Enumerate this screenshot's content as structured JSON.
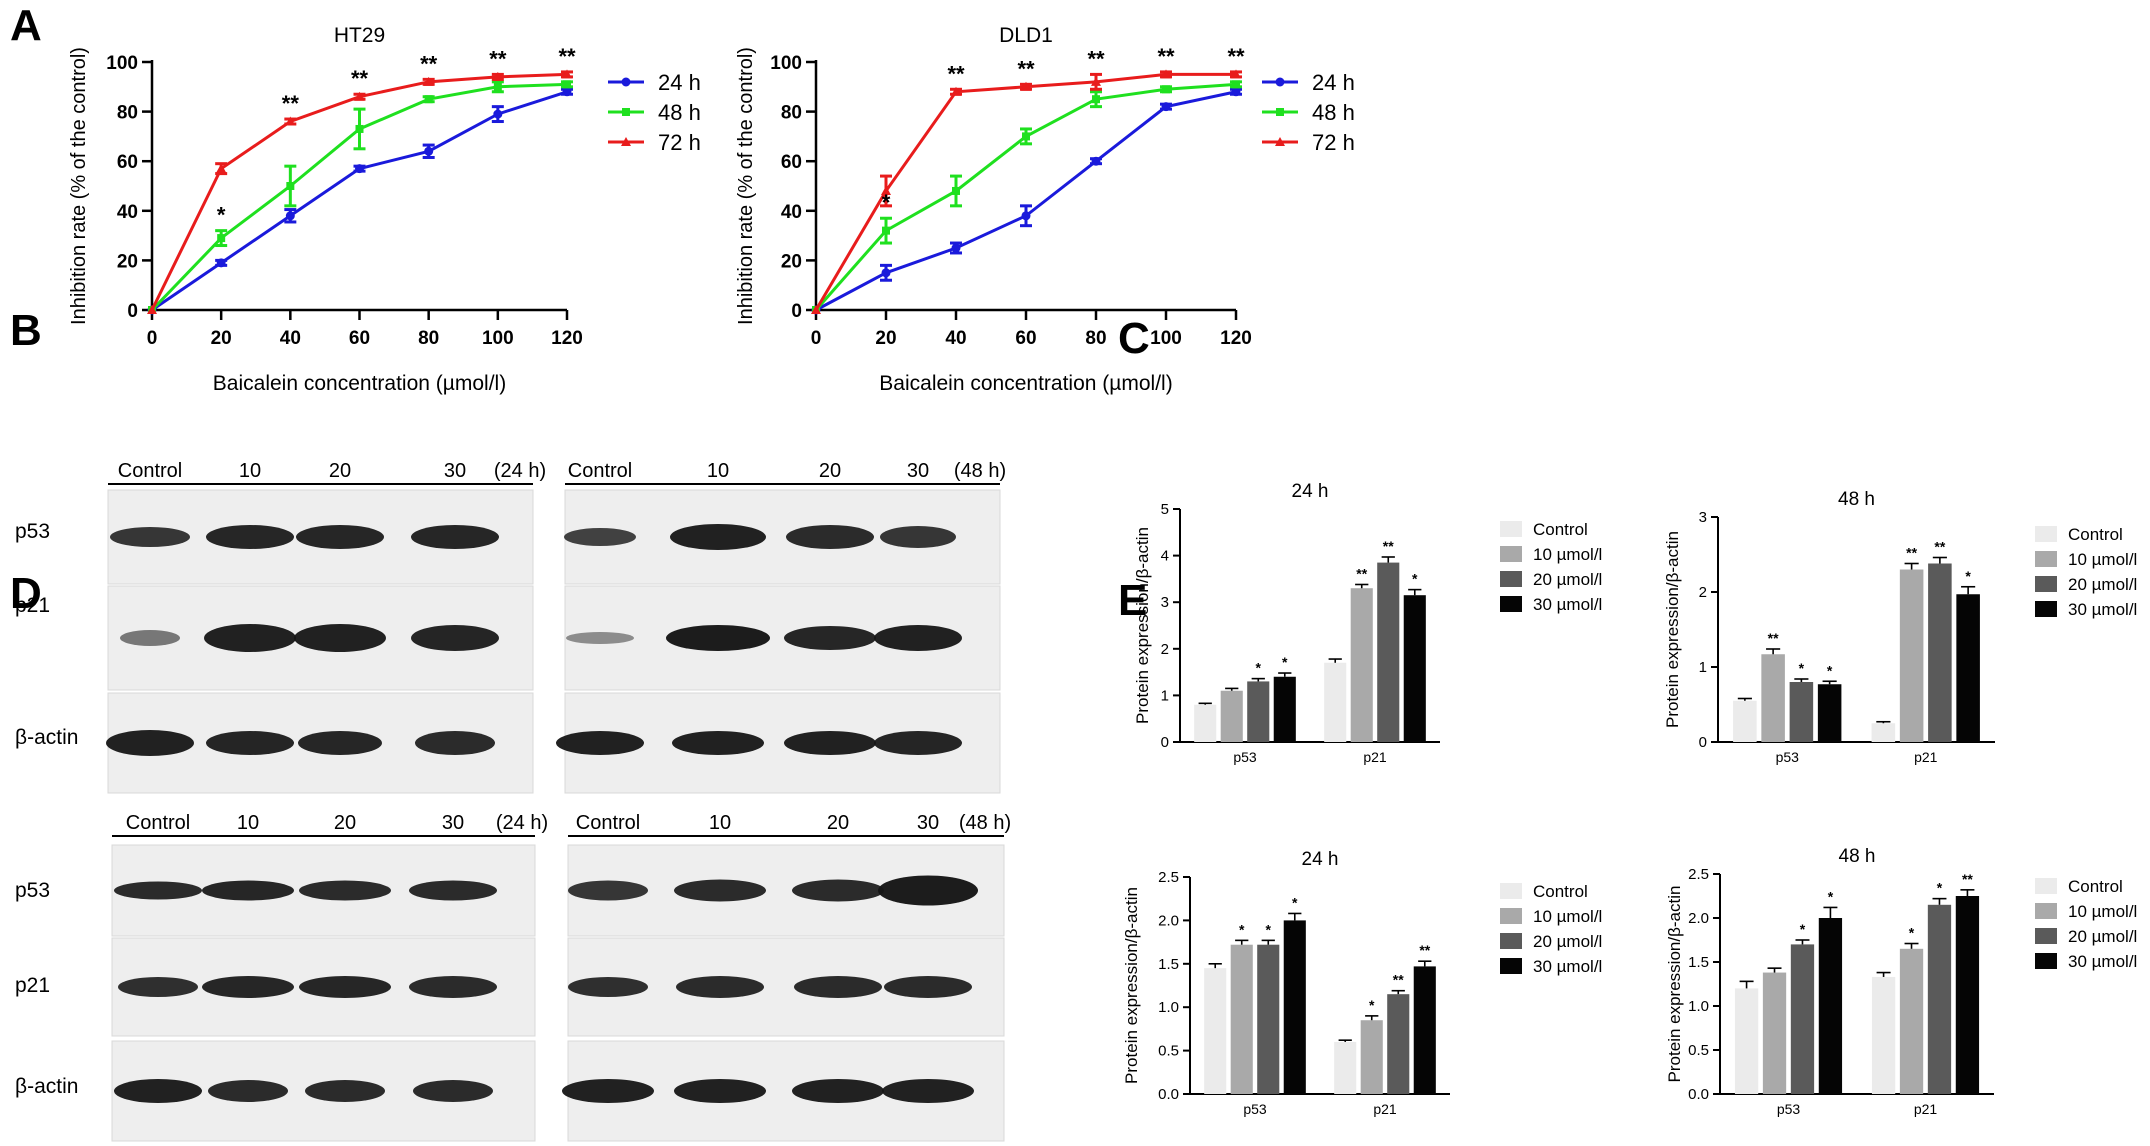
{
  "panels": [
    "A",
    "B",
    "C",
    "D",
    "E"
  ],
  "line_legend": [
    "24 h",
    "48 h",
    "72 h"
  ],
  "line_colors": {
    "24 h": "#1a1adb",
    "48 h": "#1fe01f",
    "72 h": "#e81c1c"
  },
  "bar_legend": [
    "Control",
    "10 µmol/l",
    "20 µmol/l",
    "30 µmol/l"
  ],
  "bar_colors": [
    "#ebebeb",
    "#a9a9a9",
    "#5a5a5a",
    "#050505"
  ],
  "blots": {
    "B_left": {
      "lanes": [
        "Control",
        "10",
        "20",
        "30"
      ],
      "time": "(24 h)"
    },
    "B_right": {
      "lanes": [
        "Control",
        "10",
        "20",
        "30"
      ],
      "time": "(48 h)"
    },
    "D_left": {
      "lanes": [
        "Control",
        "10",
        "20",
        "30"
      ],
      "time": "(24 h)"
    },
    "D_right": {
      "lanes": [
        "Control",
        "10",
        "20",
        "30"
      ],
      "time": "(48 h)"
    },
    "row_labels": [
      "p53",
      "p21",
      "β-actin"
    ]
  },
  "chart_data": [
    {
      "id": "A-HT29",
      "type": "line",
      "title": "HT29",
      "xlabel": "Baicalein concentration (µmol/l)",
      "ylabel": "Inhibition rate (% of the control)",
      "x": [
        0,
        20,
        40,
        60,
        80,
        100,
        120
      ],
      "xlim": [
        0,
        120
      ],
      "ylim": [
        0,
        100
      ],
      "xticks": [
        0,
        20,
        40,
        60,
        80,
        100,
        120
      ],
      "yticks": [
        0,
        20,
        40,
        60,
        80,
        100
      ],
      "legend": "right",
      "series": [
        {
          "name": "24 h",
          "values": [
            0,
            19,
            38,
            57,
            64,
            79,
            88
          ],
          "err": [
            0,
            1,
            2.5,
            1,
            2.5,
            3,
            1
          ]
        },
        {
          "name": "48 h",
          "values": [
            0,
            29,
            50,
            73,
            85,
            90,
            91
          ],
          "err": [
            0,
            3,
            8,
            8,
            1,
            2,
            1
          ]
        },
        {
          "name": "72 h",
          "values": [
            0,
            57,
            76,
            86,
            92,
            94,
            95
          ],
          "err": [
            0,
            2,
            1,
            1,
            1,
            1,
            1
          ]
        }
      ],
      "annotations": [
        {
          "x": 20,
          "label": "*"
        },
        {
          "x": 40,
          "label": "**"
        },
        {
          "x": 60,
          "label": "**"
        },
        {
          "x": 80,
          "label": "**"
        },
        {
          "x": 100,
          "label": "**"
        },
        {
          "x": 120,
          "label": "**"
        }
      ]
    },
    {
      "id": "A-DLD1",
      "type": "line",
      "title": "DLD1",
      "xlabel": "Baicalein concentration (µmol/l)",
      "ylabel": "Inhibition rate (% of the control)",
      "x": [
        0,
        20,
        40,
        60,
        80,
        100,
        120
      ],
      "xlim": [
        0,
        120
      ],
      "ylim": [
        0,
        100
      ],
      "xticks": [
        0,
        20,
        40,
        60,
        80,
        100,
        120
      ],
      "yticks": [
        0,
        20,
        40,
        60,
        80,
        100
      ],
      "legend": "right",
      "series": [
        {
          "name": "24 h",
          "values": [
            0,
            15,
            25,
            38,
            60,
            82,
            88
          ],
          "err": [
            0,
            3,
            2,
            4,
            1,
            1,
            1
          ]
        },
        {
          "name": "48 h",
          "values": [
            0,
            32,
            48,
            70,
            85,
            89,
            91
          ],
          "err": [
            0,
            5,
            6,
            3,
            3,
            1,
            1
          ]
        },
        {
          "name": "72 h",
          "values": [
            0,
            48,
            88,
            90,
            92,
            95,
            95
          ],
          "err": [
            0,
            6,
            1,
            1,
            3,
            1,
            1
          ]
        }
      ],
      "annotations": [
        {
          "x": 20,
          "label": "*"
        },
        {
          "x": 40,
          "label": "**"
        },
        {
          "x": 60,
          "label": "**"
        },
        {
          "x": 80,
          "label": "**"
        },
        {
          "x": 100,
          "label": "**"
        },
        {
          "x": 120,
          "label": "**"
        }
      ]
    },
    {
      "id": "C-24h",
      "type": "bar",
      "title": "24 h",
      "ylabel": "Protein expression/β-actin",
      "categories": [
        "p53",
        "p21"
      ],
      "ylim": [
        0,
        5
      ],
      "yticks": [
        0,
        1,
        2,
        3,
        4,
        5
      ],
      "series": [
        {
          "name": "Control",
          "values": [
            0.8,
            1.7
          ],
          "err": [
            0.03,
            0.08
          ],
          "sig": [
            "",
            ""
          ]
        },
        {
          "name": "10 µmol/l",
          "values": [
            1.1,
            3.3
          ],
          "err": [
            0.05,
            0.08
          ],
          "sig": [
            "",
            "**"
          ]
        },
        {
          "name": "20 µmol/l",
          "values": [
            1.3,
            3.85
          ],
          "err": [
            0.06,
            0.12
          ],
          "sig": [
            "*",
            "**"
          ]
        },
        {
          "name": "30 µmol/l",
          "values": [
            1.4,
            3.15
          ],
          "err": [
            0.08,
            0.12
          ],
          "sig": [
            "*",
            "*"
          ]
        }
      ]
    },
    {
      "id": "C-48h",
      "type": "bar",
      "title": "48 h",
      "ylabel": "Protein expression/β-actin",
      "categories": [
        "p53",
        "p21"
      ],
      "ylim": [
        0,
        3
      ],
      "yticks": [
        0,
        1,
        2,
        3
      ],
      "series": [
        {
          "name": "Control",
          "values": [
            0.55,
            0.25
          ],
          "err": [
            0.03,
            0.02
          ],
          "sig": [
            "",
            ""
          ]
        },
        {
          "name": "10 µmol/l",
          "values": [
            1.17,
            2.3
          ],
          "err": [
            0.07,
            0.08
          ],
          "sig": [
            "**",
            "**"
          ]
        },
        {
          "name": "20 µmol/l",
          "values": [
            0.8,
            2.38
          ],
          "err": [
            0.04,
            0.08
          ],
          "sig": [
            "*",
            "**"
          ]
        },
        {
          "name": "30 µmol/l",
          "values": [
            0.77,
            1.97
          ],
          "err": [
            0.04,
            0.1
          ],
          "sig": [
            "*",
            "*"
          ]
        }
      ]
    },
    {
      "id": "E-24h",
      "type": "bar",
      "title": "24 h",
      "ylabel": "Protein expression/β-actin",
      "categories": [
        "p53",
        "p21"
      ],
      "ylim": [
        0,
        2.5
      ],
      "yticks": [
        0.0,
        0.5,
        1.0,
        1.5,
        2.0,
        2.5
      ],
      "ytick_labels": [
        "0.0",
        "0.5",
        "1.0",
        "1.5",
        "2.0",
        "2.5"
      ],
      "series": [
        {
          "name": "Control",
          "values": [
            1.45,
            0.6
          ],
          "err": [
            0.05,
            0.02
          ],
          "sig": [
            "",
            ""
          ]
        },
        {
          "name": "10 µmol/l",
          "values": [
            1.72,
            0.85
          ],
          "err": [
            0.05,
            0.05
          ],
          "sig": [
            "*",
            "*"
          ]
        },
        {
          "name": "20 µmol/l",
          "values": [
            1.72,
            1.15
          ],
          "err": [
            0.05,
            0.04
          ],
          "sig": [
            "*",
            "**"
          ]
        },
        {
          "name": "30 µmol/l",
          "values": [
            2.0,
            1.47
          ],
          "err": [
            0.08,
            0.06
          ],
          "sig": [
            "*",
            "**"
          ]
        }
      ]
    },
    {
      "id": "E-48h",
      "type": "bar",
      "title": "48 h",
      "ylabel": "Protein expression/β-actin",
      "categories": [
        "p53",
        "p21"
      ],
      "ylim": [
        0,
        2.5
      ],
      "yticks": [
        0.0,
        0.5,
        1.0,
        1.5,
        2.0,
        2.5
      ],
      "ytick_labels": [
        "0.0",
        "0.5",
        "1.0",
        "1.5",
        "2.0",
        "2.5"
      ],
      "series": [
        {
          "name": "Control",
          "values": [
            1.2,
            1.33
          ],
          "err": [
            0.08,
            0.05
          ],
          "sig": [
            "",
            ""
          ]
        },
        {
          "name": "10 µmol/l",
          "values": [
            1.38,
            1.65
          ],
          "err": [
            0.05,
            0.06
          ],
          "sig": [
            "",
            "*"
          ]
        },
        {
          "name": "20 µmol/l",
          "values": [
            1.7,
            2.15
          ],
          "err": [
            0.05,
            0.07
          ],
          "sig": [
            "*",
            "*"
          ]
        },
        {
          "name": "30 µmol/l",
          "values": [
            2.0,
            2.25
          ],
          "err": [
            0.12,
            0.07
          ],
          "sig": [
            "*",
            "**"
          ]
        }
      ]
    }
  ]
}
